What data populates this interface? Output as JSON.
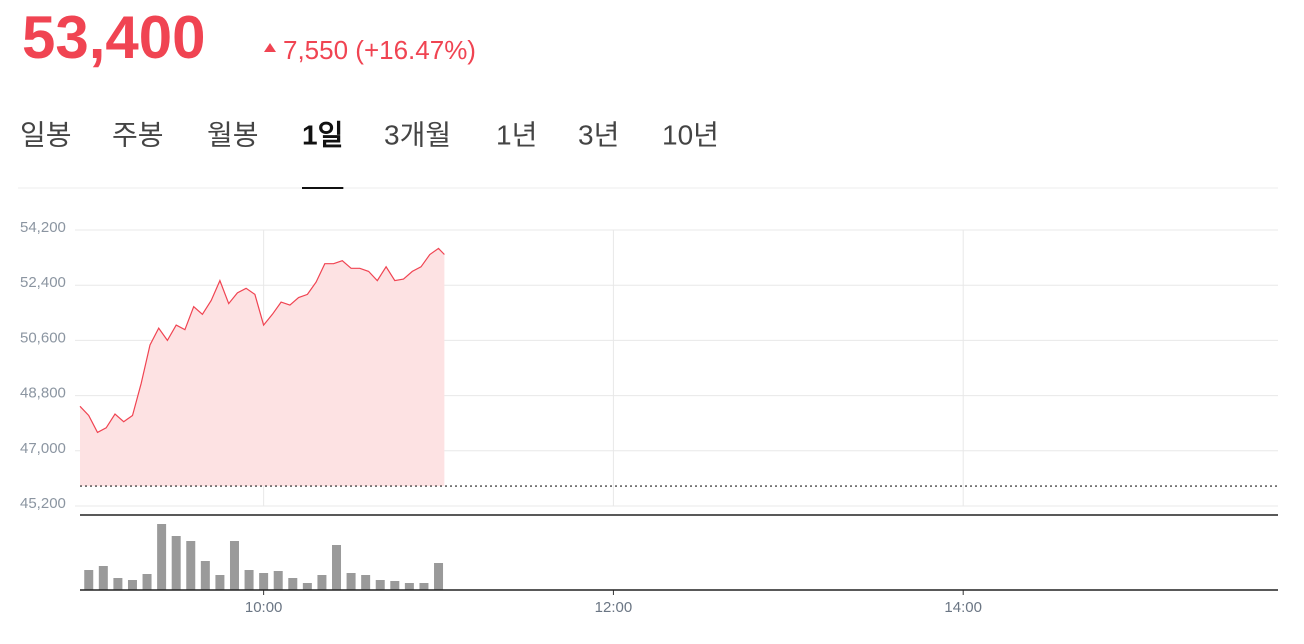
{
  "header": {
    "price": "53,400",
    "change": "7,550 (+16.47%)"
  },
  "tabs": {
    "items": [
      "일봉",
      "주봉",
      "월봉",
      "1일",
      "3개월",
      "1년",
      "3년",
      "10년"
    ],
    "active": 3
  },
  "chart_data": {
    "type": "line",
    "color": "#f04452",
    "fill": "#fde2e3",
    "x": [
      537,
      540,
      543,
      546,
      549,
      552,
      555,
      558,
      561,
      564,
      567,
      570,
      573,
      576,
      579,
      582,
      585,
      588,
      591,
      594,
      597,
      600,
      603,
      606,
      609,
      612,
      615,
      618,
      621,
      624,
      627,
      630,
      633,
      636,
      639,
      642,
      645,
      648,
      651,
      654,
      657,
      660,
      662
    ],
    "values": [
      48450,
      48150,
      47600,
      47750,
      48200,
      47950,
      48150,
      49200,
      50450,
      51000,
      50600,
      51100,
      50950,
      51700,
      51450,
      51900,
      52550,
      51800,
      52150,
      52300,
      52100,
      51100,
      51450,
      51850,
      51750,
      52000,
      52100,
      52500,
      53100,
      53100,
      53200,
      52950,
      52950,
      52850,
      52550,
      53000,
      52550,
      52600,
      52850,
      53000,
      53400,
      53600,
      53400
    ],
    "reference_line": 45850,
    "xlim": [
      537,
      948
    ],
    "xticks": [
      {
        "value": 600,
        "label": "10:00"
      },
      {
        "value": 720,
        "label": "12:00"
      },
      {
        "value": 840,
        "label": "14:00"
      }
    ],
    "ylim": [
      45200,
      54200
    ],
    "yticks": [
      {
        "value": 54200,
        "label": "54,200"
      },
      {
        "value": 52400,
        "label": "52,400"
      },
      {
        "value": 50600,
        "label": "50,600"
      },
      {
        "value": 48800,
        "label": "48,800"
      },
      {
        "value": 47000,
        "label": "47,000"
      },
      {
        "value": 45200,
        "label": "45,200"
      }
    ],
    "grid": true,
    "volume": {
      "type": "bar",
      "color": "#9a9a9a",
      "ylim": [
        0,
        75
      ],
      "x": [
        540,
        545,
        550,
        555,
        560,
        565,
        570,
        575,
        580,
        585,
        590,
        595,
        600,
        605,
        610,
        615,
        620,
        625,
        630,
        635,
        640,
        645,
        650,
        655,
        660
      ],
      "values": [
        20,
        24,
        12,
        10,
        16,
        66,
        54,
        49,
        29,
        15,
        49,
        20,
        17,
        19,
        12,
        7,
        15,
        45,
        17,
        15,
        10,
        9,
        7,
        7,
        27
      ]
    }
  }
}
